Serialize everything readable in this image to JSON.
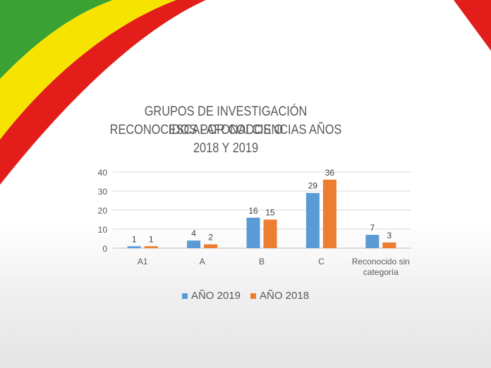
{
  "chart_data": {
    "type": "bar",
    "title_lines": [
      "GRUPOS DE INVESTIGACIÓN ESCALAFONADOS O",
      "RECONOCIDOS POR COLCIENCIAS AÑOS",
      "2018 Y 2019"
    ],
    "categories": [
      [
        "A1"
      ],
      [
        "A"
      ],
      [
        "B"
      ],
      [
        "C"
      ],
      [
        "Reconocido sin",
        "categoría"
      ]
    ],
    "series": [
      {
        "name": "AÑO 2019",
        "color": "#5b9bd5",
        "values": [
          1,
          4,
          16,
          29,
          7
        ]
      },
      {
        "name": "AÑO 2018",
        "color": "#ed7d31",
        "values": [
          1,
          2,
          15,
          36,
          3
        ]
      }
    ],
    "yticks": [
      "0",
      "10",
      "20",
      "30",
      "40"
    ],
    "ylim": [
      0,
      40
    ],
    "grid": true,
    "legend_position": "bottom"
  },
  "decor": {
    "green": "#3aa133",
    "yellow": "#f6e400",
    "red": "#e31d1a"
  }
}
